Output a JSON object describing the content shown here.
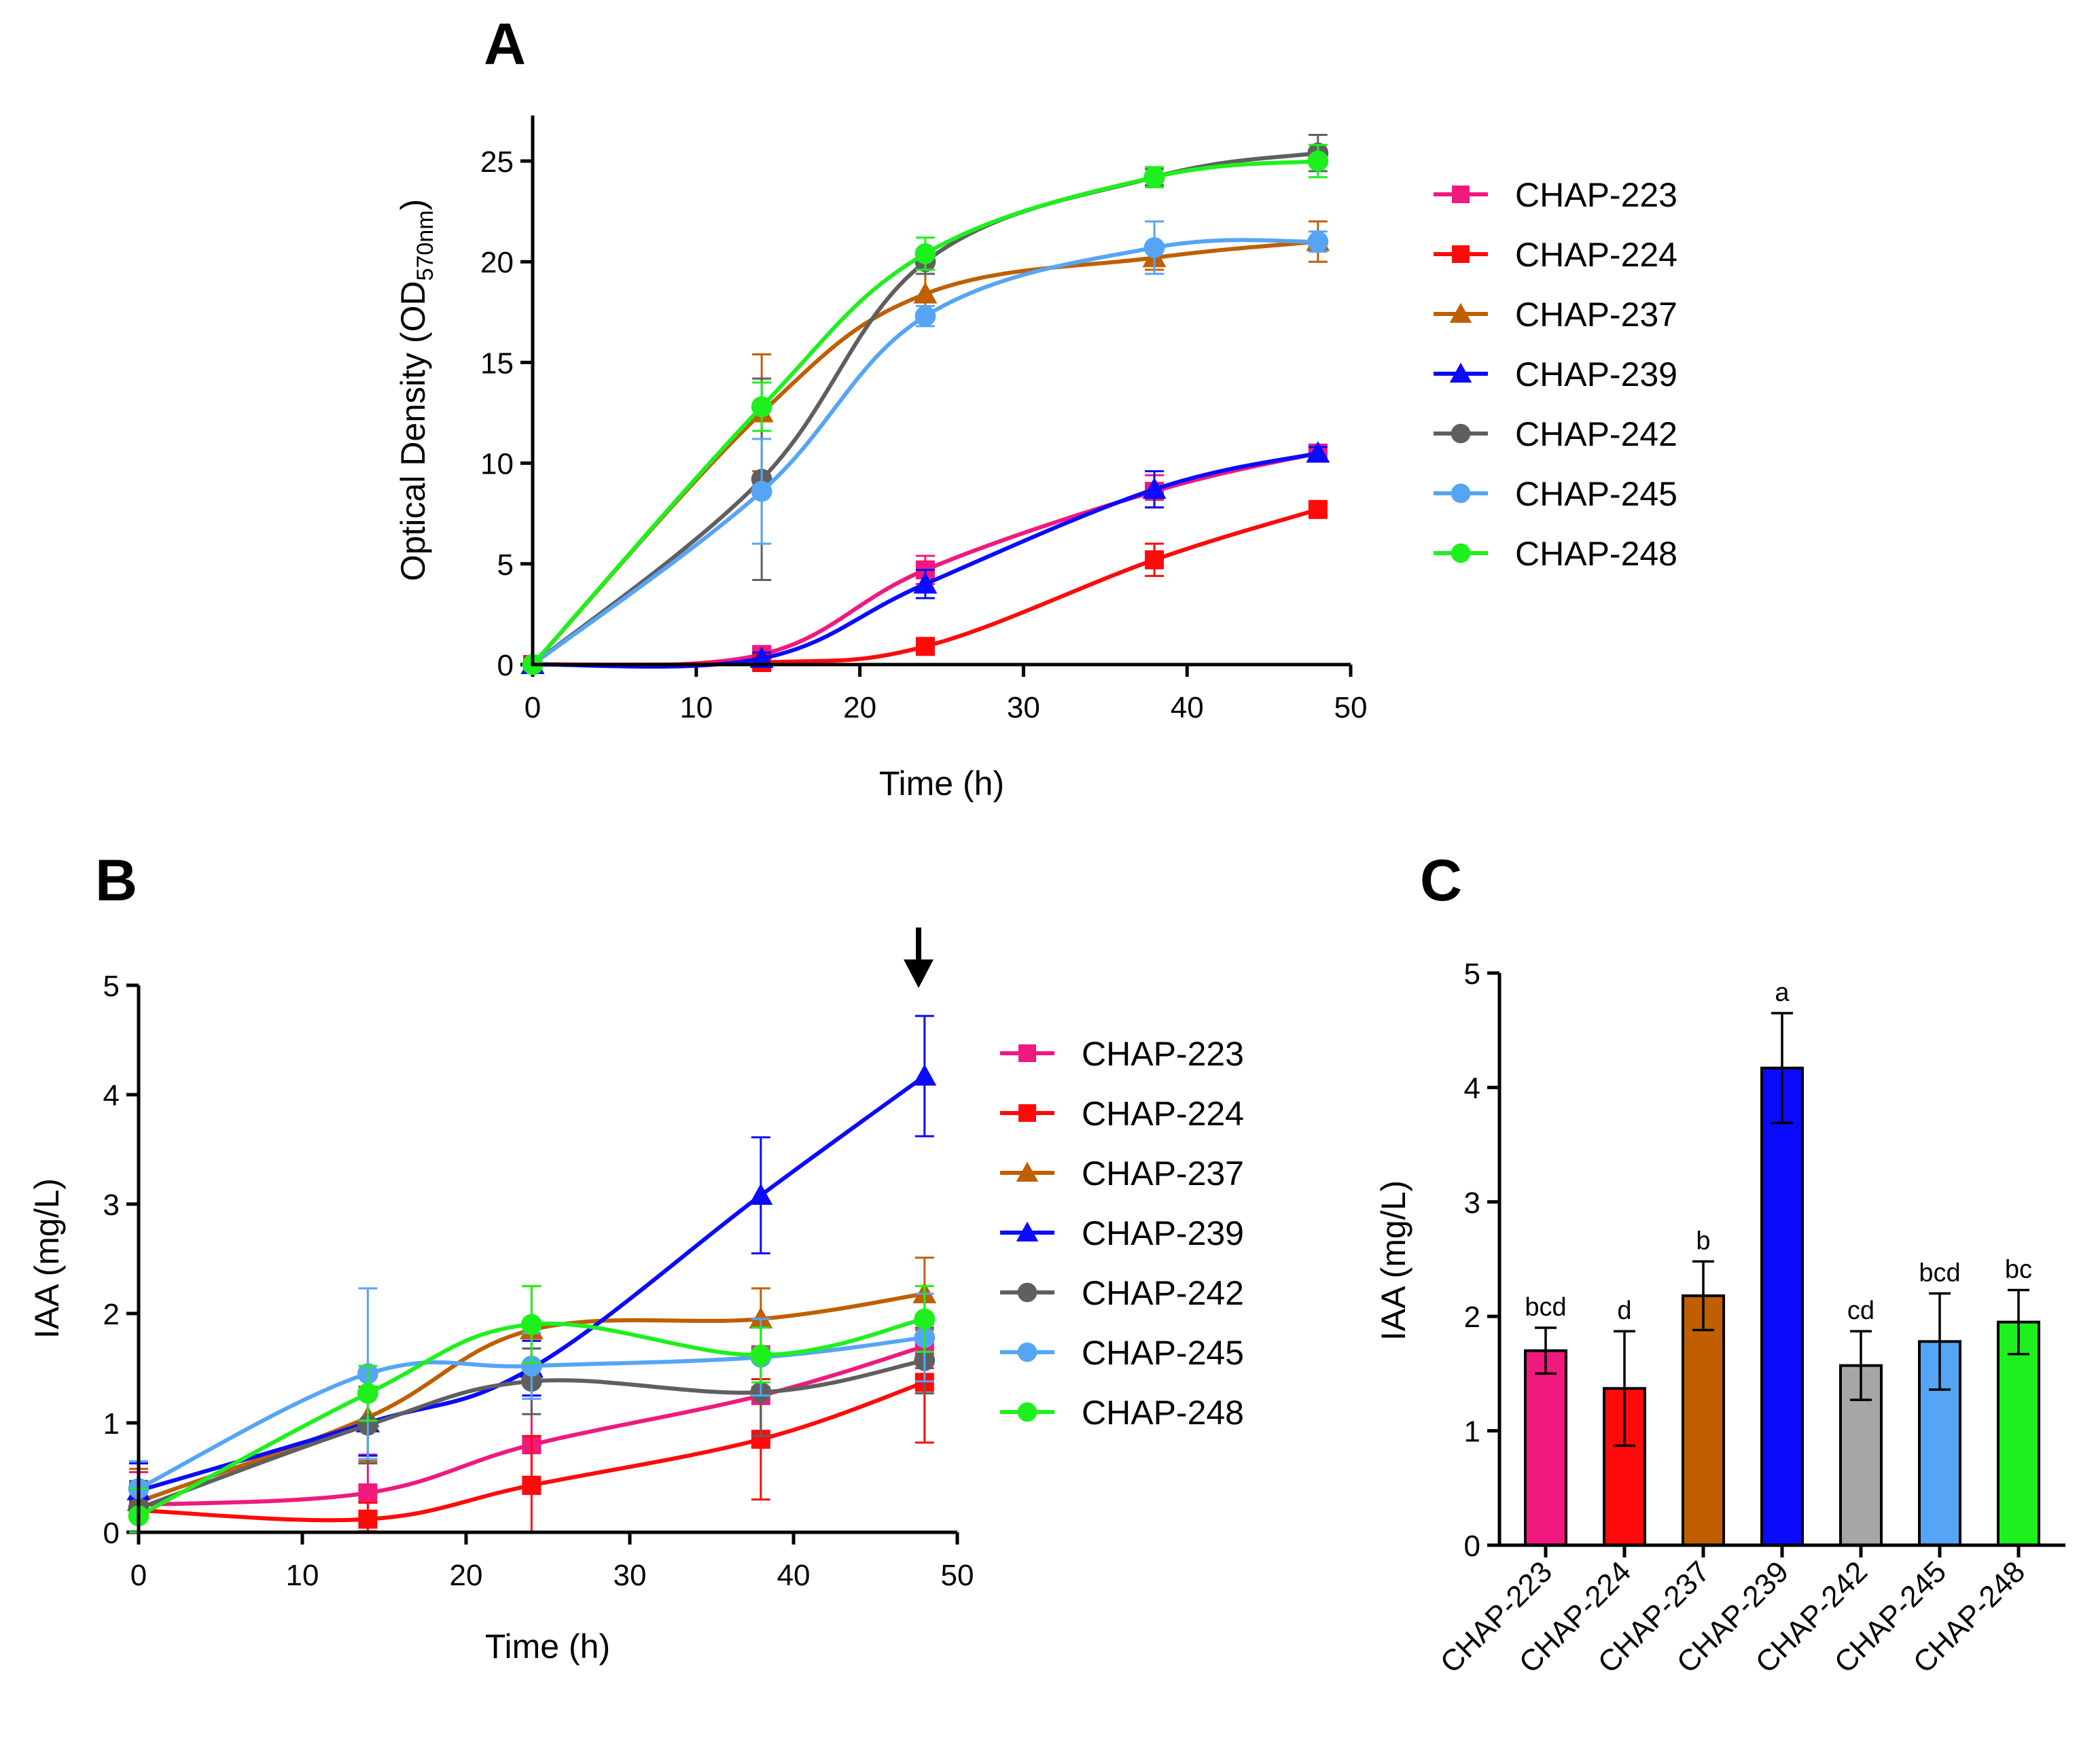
{
  "figure": {
    "panel_letters": {
      "a": "A",
      "b": "B",
      "c": "C"
    },
    "colors": {
      "CHAP-223": "#f0197d",
      "CHAP-224": "#ff0a0a",
      "CHAP-237": "#bf5f00",
      "CHAP-239": "#0a0aff",
      "CHAP-242": "#5f5f5f",
      "CHAP-245": "#56a5f5",
      "CHAP-248": "#1ef01e"
    },
    "bar_colors": {
      "CHAP-223": "#f0197d",
      "CHAP-224": "#ff0a0a",
      "CHAP-237": "#bf5f00",
      "CHAP-239": "#0a0aff",
      "CHAP-242": "#a6a6a6",
      "CHAP-245": "#56a5f5",
      "CHAP-248": "#1ef01e"
    },
    "markers": {
      "CHAP-223": "square",
      "CHAP-224": "square",
      "CHAP-237": "triangle",
      "CHAP-239": "triangle",
      "CHAP-242": "circle",
      "CHAP-245": "circle",
      "CHAP-248": "circle"
    },
    "arrow_icon": "down-arrow-icon"
  },
  "chart_data": [
    {
      "panel": "A",
      "type": "line",
      "title": "",
      "xlabel": "Time (h)",
      "ylabel": "Optical Density (OD570nm)",
      "ylabel_main": "Optical Density (OD",
      "ylabel_sub": "570nm",
      "ylabel_end": ")",
      "xlim": [
        0,
        50
      ],
      "ylim": [
        0,
        27
      ],
      "xticks": [
        0,
        10,
        20,
        30,
        40,
        50
      ],
      "yticks": [
        0,
        5,
        10,
        15,
        20,
        25
      ],
      "x": [
        0,
        14,
        24,
        38,
        48
      ],
      "legend": "right",
      "series": [
        {
          "name": "CHAP-223",
          "values": [
            0,
            0.5,
            4.7,
            8.6,
            10.5
          ],
          "errors": [
            0.1,
            0.3,
            0.7,
            0.8,
            0.4
          ]
        },
        {
          "name": "CHAP-224",
          "values": [
            0,
            0.1,
            0.9,
            5.2,
            7.7
          ],
          "errors": [
            0.1,
            0.2,
            0.3,
            0.8,
            0.3
          ]
        },
        {
          "name": "CHAP-237",
          "values": [
            0,
            12.5,
            18.4,
            20.2,
            21.0
          ],
          "errors": [
            0.2,
            2.9,
            1.0,
            0.6,
            1.0
          ]
        },
        {
          "name": "CHAP-239",
          "values": [
            0,
            0.3,
            4.0,
            8.7,
            10.5
          ],
          "errors": [
            0.1,
            0.3,
            0.7,
            0.9,
            0.3
          ]
        },
        {
          "name": "CHAP-242",
          "values": [
            0,
            9.2,
            20.0,
            24.2,
            25.4
          ],
          "errors": [
            0.2,
            5.0,
            0.6,
            0.4,
            0.9
          ]
        },
        {
          "name": "CHAP-245",
          "values": [
            0,
            8.6,
            17.3,
            20.7,
            21.0
          ],
          "errors": [
            0.2,
            2.6,
            0.5,
            1.3,
            0.5
          ]
        },
        {
          "name": "CHAP-248",
          "values": [
            0,
            12.8,
            20.4,
            24.2,
            25.0
          ],
          "errors": [
            0.2,
            1.2,
            0.8,
            0.5,
            0.8
          ]
        }
      ]
    },
    {
      "panel": "B",
      "type": "line",
      "title": "",
      "xlabel": "Time (h)",
      "ylabel": "IAA (mg/L)",
      "xlim": [
        0,
        50
      ],
      "ylim": [
        0,
        5
      ],
      "xticks": [
        0,
        10,
        20,
        30,
        40,
        50
      ],
      "yticks": [
        0,
        1,
        2,
        3,
        4,
        5
      ],
      "x": [
        0,
        14,
        24,
        38,
        48
      ],
      "legend": "right",
      "annotation": "downward arrow above 48 h",
      "series": [
        {
          "name": "CHAP-223",
          "values": [
            0.25,
            0.36,
            0.8,
            1.25,
            1.7
          ],
          "errors": [
            0.3,
            0.35,
            0.45,
            0.45,
            0.2
          ]
        },
        {
          "name": "CHAP-224",
          "values": [
            0.2,
            0.12,
            0.43,
            0.85,
            1.37
          ],
          "errors": [
            0.25,
            0.15,
            0.45,
            0.55,
            0.55
          ]
        },
        {
          "name": "CHAP-237",
          "values": [
            0.28,
            1.05,
            1.85,
            1.95,
            2.18
          ],
          "errors": [
            0.3,
            0.4,
            0.4,
            0.28,
            0.33
          ]
        },
        {
          "name": "CHAP-239",
          "values": [
            0.38,
            1.0,
            1.5,
            3.08,
            4.17
          ],
          "errors": [
            0.25,
            0.3,
            0.25,
            0.53,
            0.55
          ]
        },
        {
          "name": "CHAP-242",
          "values": [
            0.22,
            0.98,
            1.38,
            1.28,
            1.57
          ],
          "errors": [
            0.25,
            0.35,
            0.3,
            0.4,
            0.3
          ]
        },
        {
          "name": "CHAP-245",
          "values": [
            0.4,
            1.45,
            1.52,
            1.6,
            1.78
          ],
          "errors": [
            0.25,
            0.78,
            0.3,
            0.35,
            0.4
          ]
        },
        {
          "name": "CHAP-248",
          "values": [
            0.15,
            1.27,
            1.9,
            1.62,
            1.95
          ],
          "errors": [
            0.25,
            0.25,
            0.35,
            0.25,
            0.3
          ]
        }
      ]
    },
    {
      "panel": "C",
      "type": "bar",
      "title": "",
      "xlabel": "",
      "ylabel": "IAA (mg/L)",
      "ylim": [
        0,
        5
      ],
      "yticks": [
        0,
        1,
        2,
        3,
        4,
        5
      ],
      "categories": [
        "CHAP-223",
        "CHAP-224",
        "CHAP-237",
        "CHAP-239",
        "CHAP-242",
        "CHAP-245",
        "CHAP-248"
      ],
      "values": [
        1.7,
        1.37,
        2.18,
        4.17,
        1.57,
        1.78,
        1.95
      ],
      "errors": [
        0.2,
        0.5,
        0.3,
        0.48,
        0.3,
        0.42,
        0.28
      ],
      "significance": [
        "bcd",
        "d",
        "b",
        "a",
        "cd",
        "bcd",
        "bc"
      ]
    }
  ]
}
